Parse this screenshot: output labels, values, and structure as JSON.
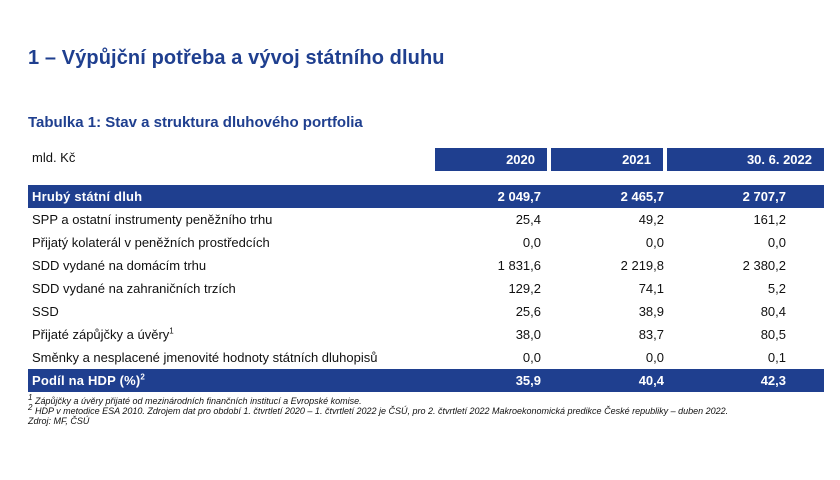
{
  "title": "1 – Výpůjční potřeba a vývoj státního dluhu",
  "table_title": "Tabulka 1: Stav a struktura dluhového portfolia",
  "unit": "mld. Kč",
  "columns": [
    "2020",
    "2021",
    "30. 6. 2022"
  ],
  "total_row": {
    "label": "Hrubý státní dluh",
    "values": [
      "2 049,7",
      "2 465,7",
      "2 707,7"
    ]
  },
  "rows": [
    {
      "label": "SPP a ostatní instrumenty peněžního trhu",
      "sup": "",
      "values": [
        "25,4",
        "49,2",
        "161,2"
      ]
    },
    {
      "label": "Přijatý kolaterál v peněžních prostředcích",
      "sup": "",
      "values": [
        "0,0",
        "0,0",
        "0,0"
      ]
    },
    {
      "label": "SDD vydané na domácím trhu",
      "sup": "",
      "values": [
        "1 831,6",
        "2 219,8",
        "2 380,2"
      ]
    },
    {
      "label": "SDD vydané na zahraničních trzích",
      "sup": "",
      "values": [
        "129,2",
        "74,1",
        "5,2"
      ]
    },
    {
      "label": "SSD",
      "sup": "",
      "values": [
        "25,6",
        "38,9",
        "80,4"
      ]
    },
    {
      "label": "Přijaté zápůjčky a úvěry",
      "sup": "1",
      "values": [
        "38,0",
        "83,7",
        "80,5"
      ]
    },
    {
      "label": "Směnky a nesplacené jmenovité hodnoty státních dluhopisů",
      "sup": "",
      "values": [
        "0,0",
        "0,0",
        "0,1"
      ]
    }
  ],
  "gdp_row": {
    "label": "Podíl na HDP (%)",
    "sup": "2",
    "values": [
      "35,9",
      "40,4",
      "42,3"
    ]
  },
  "footnotes": [
    {
      "sup": "1",
      "text": " Zápůjčky a úvěry přijaté od mezinárodních finančních institucí a Evropské komise."
    },
    {
      "sup": "2",
      "text": " HDP v metodice ESA 2010. Zdrojem dat pro období 1. čtvrtletí 2020 – 1. čtvrtletí 2022 je ČSÚ, pro 2. čtvrtletí 2022 Makroekonomická predikce České republiky – duben 2022."
    },
    {
      "sup": "",
      "text": "Zdroj: MF, ČSÚ"
    }
  ],
  "colors": {
    "accent": "#1f3f8f"
  }
}
